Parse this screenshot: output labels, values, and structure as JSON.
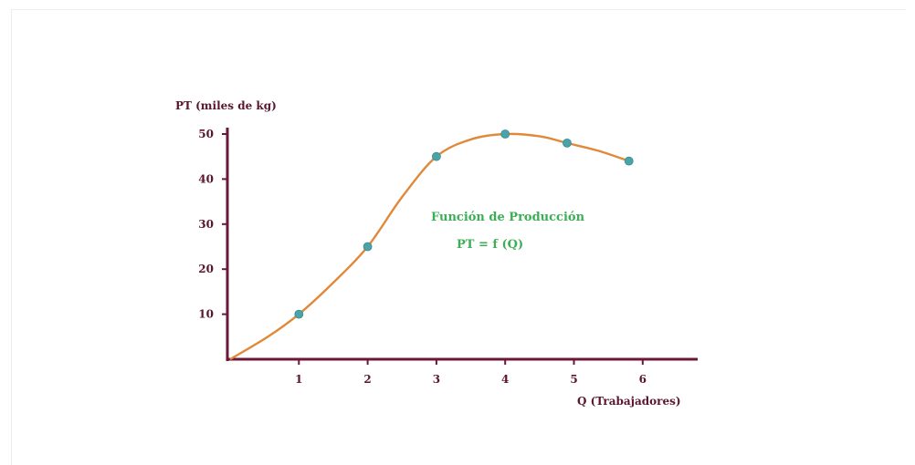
{
  "colors": {
    "axis": "#6b1838",
    "axis_text": "#5a1530",
    "curve": "#e0893a",
    "points": "#4aa3a8",
    "annotation": "#3cae55"
  },
  "chart_data": {
    "type": "line",
    "title": "",
    "ylabel": "PT (miles de kg)",
    "xlabel": "Q (Trabajadores)",
    "x_ticks": [
      "1",
      "2",
      "3",
      "4",
      "5",
      "6"
    ],
    "y_ticks": [
      "10",
      "20",
      "30",
      "40",
      "50"
    ],
    "xlim": [
      0,
      6.5
    ],
    "ylim": [
      0,
      50
    ],
    "grid": false,
    "curve": [
      [
        0,
        0
      ],
      [
        0.55,
        5
      ],
      [
        1,
        10
      ],
      [
        1.5,
        17
      ],
      [
        2,
        25
      ],
      [
        2.5,
        36
      ],
      [
        3,
        45
      ],
      [
        3.5,
        48.8
      ],
      [
        4,
        50
      ],
      [
        4.5,
        49.5
      ],
      [
        4.9,
        48
      ],
      [
        5.35,
        46.3
      ],
      [
        5.8,
        44
      ]
    ],
    "points": [
      {
        "x": 1,
        "y": 10
      },
      {
        "x": 2,
        "y": 25
      },
      {
        "x": 3,
        "y": 45
      },
      {
        "x": 4,
        "y": 50
      },
      {
        "x": 4.9,
        "y": 48
      },
      {
        "x": 5.8,
        "y": 44
      }
    ],
    "annotations": [
      "Función de Producción",
      "PT = f (Q)"
    ]
  }
}
